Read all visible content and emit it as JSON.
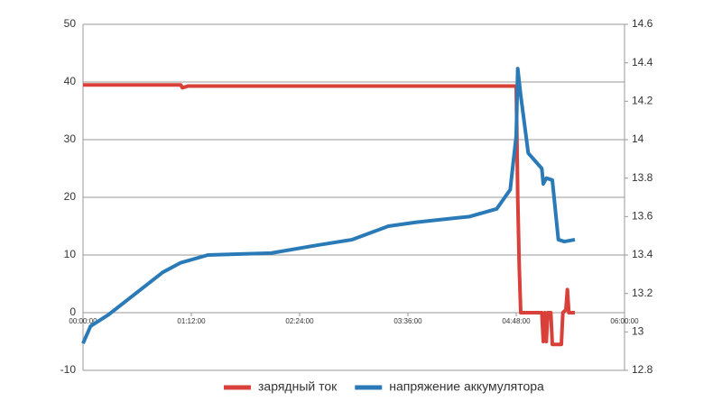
{
  "chart_data": {
    "type": "line",
    "xlim": [
      0,
      360
    ],
    "xticks": [
      {
        "value": 0,
        "label": "00:00:00"
      },
      {
        "value": 72,
        "label": "01:12:00"
      },
      {
        "value": 144,
        "label": "02:24:00"
      },
      {
        "value": 216,
        "label": "03:36:00"
      },
      {
        "value": 288,
        "label": "04:48:00"
      },
      {
        "value": 360,
        "label": "06:00:00"
      }
    ],
    "ylim": [
      -10,
      50
    ],
    "yticks": [
      -10,
      0,
      10,
      20,
      30,
      40,
      50
    ],
    "y2lim": [
      12.8,
      14.6
    ],
    "y2ticks": [
      12.8,
      13,
      13.2,
      13.4,
      13.6,
      13.8,
      14,
      14.2,
      14.4,
      14.6
    ],
    "grid": true,
    "series": [
      {
        "name": "зарядный ток",
        "color": "#d9403a",
        "x": [
          0,
          65,
          66,
          70,
          288,
          289,
          290,
          291,
          305,
          306,
          307,
          308,
          309,
          311,
          312,
          318,
          319,
          321,
          322,
          323,
          327
        ],
        "values": [
          39.5,
          39.5,
          39,
          39.3,
          39.3,
          20,
          8,
          0,
          0,
          -5,
          0,
          -5,
          0,
          0,
          -5.5,
          -5.5,
          0,
          0.5,
          4,
          0,
          0
        ]
      },
      {
        "name": "напряжение аккумулятора",
        "color": "#2a7ab8",
        "axis": "y2",
        "x": [
          0,
          5,
          17,
          35,
          53,
          65,
          83,
          125,
          155,
          179,
          203,
          221,
          257,
          275,
          284,
          288,
          289,
          291,
          296,
          305,
          306,
          308,
          312,
          316,
          320,
          327
        ],
        "values": [
          12.94,
          13.03,
          13.09,
          13.2,
          13.31,
          13.36,
          13.4,
          13.41,
          13.45,
          13.48,
          13.55,
          13.57,
          13.6,
          13.64,
          13.74,
          14.02,
          14.37,
          14.23,
          13.93,
          13.85,
          13.77,
          13.8,
          13.79,
          13.48,
          13.47,
          13.48
        ]
      }
    ]
  }
}
